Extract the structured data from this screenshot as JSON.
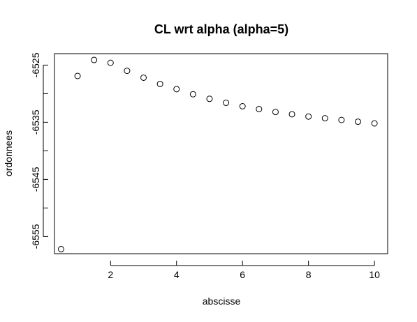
{
  "chart_data": {
    "type": "scatter",
    "title": "CL wrt alpha (alpha=5)",
    "xlabel": "abscisse",
    "ylabel": "ordonnees",
    "xlim": [
      0.3,
      10.4
    ],
    "ylim": [
      -6558,
      -6523
    ],
    "x_ticks": [
      2,
      4,
      6,
      8,
      10
    ],
    "x_tick_labels": [
      "2",
      "4",
      "6",
      "8",
      "10"
    ],
    "y_ticks": [
      -6525,
      -6530,
      -6535,
      -6540,
      -6545,
      -6550,
      -6555
    ],
    "y_tick_labels": [
      "-6525",
      "",
      "-6535",
      "",
      "-6545",
      "",
      "-6555"
    ],
    "grid": false,
    "marker": "open-circle",
    "x": [
      0.5,
      1.0,
      1.5,
      2.0,
      2.5,
      3.0,
      3.5,
      4.0,
      4.5,
      5.0,
      5.5,
      6.0,
      6.5,
      7.0,
      7.5,
      8.0,
      8.5,
      9.0,
      9.5,
      10.0
    ],
    "y": [
      -6557.2,
      -6526.9,
      -6524.1,
      -6524.6,
      -6526.0,
      -6527.2,
      -6528.3,
      -6529.2,
      -6530.1,
      -6530.9,
      -6531.6,
      -6532.2,
      -6532.7,
      -6533.2,
      -6533.6,
      -6534.0,
      -6534.3,
      -6534.6,
      -6534.9,
      -6535.2
    ]
  }
}
